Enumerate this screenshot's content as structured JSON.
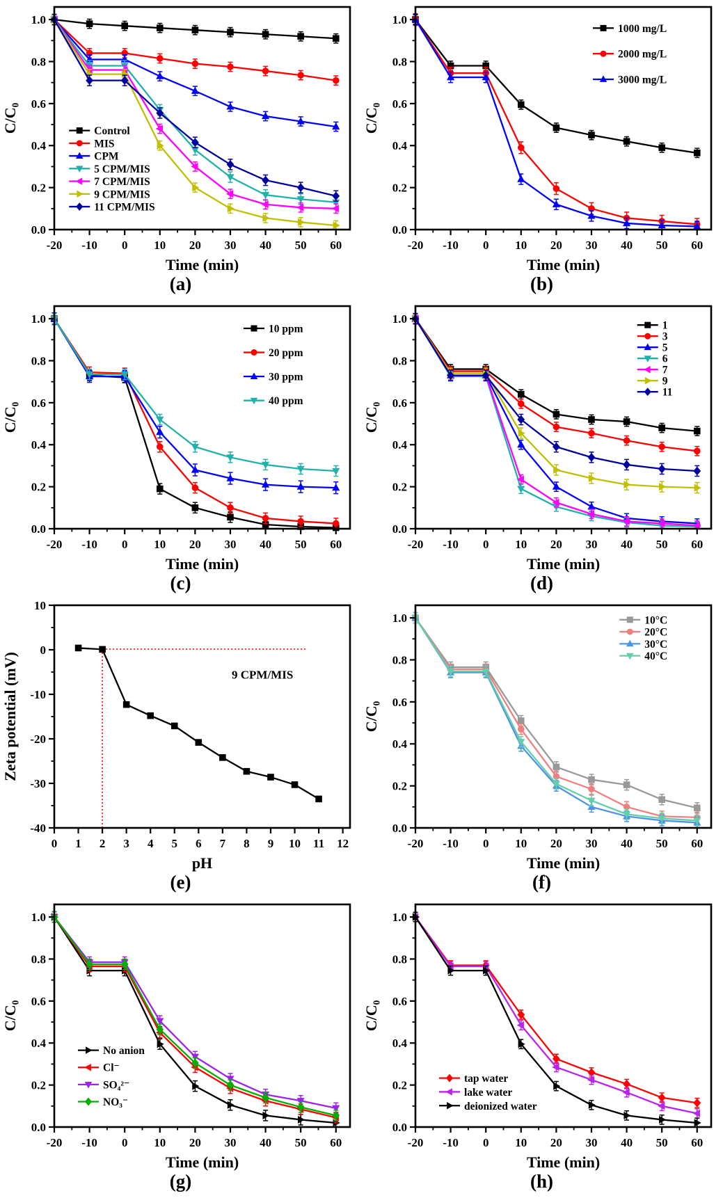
{
  "chart_data": [
    {
      "id": "a",
      "caption": "(a)",
      "type": "line",
      "xlabel": "Time (min)",
      "ylabel": "C/C₀",
      "xlim": [
        -20,
        64
      ],
      "ylim": [
        0,
        1.06
      ],
      "xticks": [
        -20,
        -10,
        0,
        10,
        20,
        30,
        40,
        50,
        60
      ],
      "xticklabels": [
        "-20",
        "-10",
        "0",
        "10",
        "20",
        "30",
        "40",
        "50",
        "60"
      ],
      "yticks": [
        0.0,
        0.2,
        0.4,
        0.6,
        0.8,
        1.0
      ],
      "yticklabels": [
        "0.0",
        "0.2",
        "0.4",
        "0.6",
        "0.8",
        "1.0"
      ],
      "minor_x": true,
      "minor_y": true,
      "grid": false,
      "x": [
        -20,
        -10,
        0,
        10,
        20,
        30,
        40,
        50,
        60
      ],
      "legend": {
        "x": 0.05,
        "y": 0.555,
        "dy": 0.057
      },
      "series": [
        {
          "name": "Control",
          "color": "#000000",
          "marker": "square",
          "yerr": 0.022,
          "values": [
            1.0,
            0.98,
            0.97,
            0.96,
            0.95,
            0.94,
            0.93,
            0.92,
            0.91
          ]
        },
        {
          "name": "MIS",
          "color": "#FF0000",
          "marker": "circle",
          "yerr": 0.022,
          "values": [
            1.0,
            0.84,
            0.84,
            0.815,
            0.79,
            0.775,
            0.755,
            0.735,
            0.71
          ]
        },
        {
          "name": "CPM",
          "color": "#0000FF",
          "marker": "triangle-up",
          "yerr": 0.022,
          "values": [
            1.0,
            0.81,
            0.81,
            0.73,
            0.66,
            0.585,
            0.54,
            0.515,
            0.49
          ]
        },
        {
          "name": "5 CPM/MIS",
          "color": "#20B2AA",
          "marker": "triangle-down",
          "yerr": 0.025,
          "values": [
            1.0,
            0.78,
            0.78,
            0.57,
            0.38,
            0.25,
            0.165,
            0.145,
            0.13
          ]
        },
        {
          "name": "7 CPM/MIS",
          "color": "#FF00FF",
          "marker": "triangle-left",
          "yerr": 0.022,
          "values": [
            1.0,
            0.76,
            0.76,
            0.48,
            0.3,
            0.17,
            0.12,
            0.105,
            0.1
          ]
        },
        {
          "name": "9 CPM/MIS",
          "color": "#C0C000",
          "marker": "triangle-right",
          "yerr": 0.022,
          "values": [
            1.0,
            0.74,
            0.74,
            0.4,
            0.2,
            0.1,
            0.055,
            0.035,
            0.02
          ]
        },
        {
          "name": "11 CPM/MIS",
          "color": "#0000A0",
          "marker": "diamond",
          "yerr": 0.025,
          "values": [
            1.0,
            0.71,
            0.71,
            0.555,
            0.415,
            0.31,
            0.235,
            0.2,
            0.16
          ]
        }
      ]
    },
    {
      "id": "b",
      "caption": "(b)",
      "type": "line",
      "xlabel": "Time (min)",
      "ylabel": "C/C₀",
      "xlim": [
        -20,
        64
      ],
      "ylim": [
        0,
        1.06
      ],
      "xticks": [
        -20,
        -10,
        0,
        10,
        20,
        30,
        40,
        50,
        60
      ],
      "xticklabels": [
        "-20",
        "-10",
        "0",
        "10",
        "20",
        "30",
        "40",
        "50",
        "60"
      ],
      "yticks": [
        0.0,
        0.2,
        0.4,
        0.6,
        0.8,
        1.0
      ],
      "yticklabels": [
        "0.0",
        "0.2",
        "0.4",
        "0.6",
        "0.8",
        "1.0"
      ],
      "minor_x": true,
      "minor_y": true,
      "grid": false,
      "x": [
        -20,
        -10,
        0,
        10,
        20,
        30,
        40,
        50,
        60
      ],
      "legend": {
        "x": 0.6,
        "y": 0.095,
        "dy": 0.115
      },
      "series": [
        {
          "name": "1000 mg/L",
          "color": "#000000",
          "marker": "square",
          "yerr": 0.022,
          "values": [
            1.0,
            0.78,
            0.78,
            0.595,
            0.485,
            0.45,
            0.42,
            0.39,
            0.365
          ]
        },
        {
          "name": "2000 mg/L",
          "color": "#FF0000",
          "marker": "circle",
          "yerr": 0.028,
          "values": [
            1.0,
            0.745,
            0.745,
            0.39,
            0.195,
            0.1,
            0.055,
            0.04,
            0.025
          ]
        },
        {
          "name": "3000 mg/L",
          "color": "#0000FF",
          "marker": "triangle-up",
          "yerr": 0.025,
          "values": [
            1.0,
            0.725,
            0.725,
            0.24,
            0.12,
            0.065,
            0.03,
            0.02,
            0.015
          ]
        }
      ]
    },
    {
      "id": "c",
      "caption": "(c)",
      "type": "line",
      "xlabel": "Time (min)",
      "ylabel": "C/C₀",
      "xlim": [
        -20,
        64
      ],
      "ylim": [
        0,
        1.06
      ],
      "xticks": [
        -20,
        -10,
        0,
        10,
        20,
        30,
        40,
        50,
        60
      ],
      "xticklabels": [
        "-20",
        "-10",
        "0",
        "10",
        "20",
        "30",
        "40",
        "50",
        "60"
      ],
      "yticks": [
        0.0,
        0.2,
        0.4,
        0.6,
        0.8,
        1.0
      ],
      "yticklabels": [
        "0.0",
        "0.2",
        "0.4",
        "0.6",
        "0.8",
        "1.0"
      ],
      "minor_x": true,
      "minor_y": true,
      "grid": false,
      "x": [
        -20,
        -10,
        0,
        10,
        20,
        30,
        40,
        50,
        60
      ],
      "legend": {
        "x": 0.64,
        "y": 0.1,
        "dy": 0.108
      },
      "series": [
        {
          "name": "10 ppm",
          "color": "#000000",
          "marker": "square",
          "yerr": 0.025,
          "values": [
            1.0,
            0.73,
            0.72,
            0.19,
            0.1,
            0.055,
            0.02,
            0.01,
            0.005
          ]
        },
        {
          "name": "20 ppm",
          "color": "#FF0000",
          "marker": "circle",
          "yerr": 0.025,
          "values": [
            1.0,
            0.745,
            0.74,
            0.39,
            0.195,
            0.1,
            0.05,
            0.035,
            0.025
          ]
        },
        {
          "name": "30 ppm",
          "color": "#0000FF",
          "marker": "triangle-up",
          "yerr": 0.028,
          "values": [
            1.0,
            0.725,
            0.725,
            0.46,
            0.28,
            0.24,
            0.21,
            0.2,
            0.195
          ]
        },
        {
          "name": "40 ppm",
          "color": "#20B2AA",
          "marker": "triangle-down",
          "yerr": 0.025,
          "values": [
            1.0,
            0.735,
            0.735,
            0.52,
            0.39,
            0.34,
            0.305,
            0.285,
            0.275
          ]
        }
      ]
    },
    {
      "id": "d",
      "caption": "(d)",
      "type": "line",
      "xlabel": "Time (min)",
      "ylabel": "C/C₀",
      "xlim": [
        -20,
        64
      ],
      "ylim": [
        0,
        1.06
      ],
      "xticks": [
        -20,
        -10,
        0,
        10,
        20,
        30,
        40,
        50,
        60
      ],
      "xticklabels": [
        "-20",
        "-10",
        "0",
        "10",
        "20",
        "30",
        "40",
        "50",
        "60"
      ],
      "yticks": [
        0.0,
        0.2,
        0.4,
        0.6,
        0.8,
        1.0
      ],
      "yticklabels": [
        "0.0",
        "0.2",
        "0.4",
        "0.6",
        "0.8",
        "1.0"
      ],
      "minor_x": true,
      "minor_y": true,
      "grid": false,
      "x": [
        -20,
        -10,
        0,
        10,
        20,
        30,
        40,
        50,
        60
      ],
      "legend": {
        "x": 0.75,
        "y": 0.085,
        "dy": 0.05
      },
      "series": [
        {
          "name": "1",
          "color": "#000000",
          "marker": "square",
          "yerr": 0.022,
          "values": [
            1.0,
            0.76,
            0.76,
            0.64,
            0.545,
            0.52,
            0.51,
            0.48,
            0.465
          ]
        },
        {
          "name": "3",
          "color": "#FF0000",
          "marker": "circle",
          "yerr": 0.022,
          "values": [
            1.0,
            0.75,
            0.75,
            0.595,
            0.485,
            0.455,
            0.42,
            0.39,
            0.37
          ]
        },
        {
          "name": "5",
          "color": "#0000FF",
          "marker": "triangle-up",
          "yerr": 0.022,
          "values": [
            1.0,
            0.73,
            0.73,
            0.4,
            0.2,
            0.105,
            0.05,
            0.035,
            0.025
          ]
        },
        {
          "name": "6",
          "color": "#20B2AA",
          "marker": "triangle-down",
          "yerr": 0.022,
          "values": [
            1.0,
            0.725,
            0.725,
            0.19,
            0.105,
            0.06,
            0.03,
            0.015,
            0.01
          ]
        },
        {
          "name": "7",
          "color": "#FF00FF",
          "marker": "triangle-left",
          "yerr": 0.022,
          "values": [
            1.0,
            0.73,
            0.73,
            0.235,
            0.125,
            0.07,
            0.035,
            0.025,
            0.015
          ]
        },
        {
          "name": "9",
          "color": "#C0C000",
          "marker": "triangle-right",
          "yerr": 0.025,
          "values": [
            1.0,
            0.74,
            0.74,
            0.455,
            0.28,
            0.24,
            0.21,
            0.2,
            0.195
          ]
        },
        {
          "name": "11",
          "color": "#0000A0",
          "marker": "diamond",
          "yerr": 0.025,
          "values": [
            1.0,
            0.73,
            0.73,
            0.52,
            0.39,
            0.34,
            0.305,
            0.285,
            0.275
          ]
        }
      ]
    },
    {
      "id": "e",
      "caption": "(e)",
      "type": "line",
      "xlabel": "pH",
      "ylabel": "Zeta potential (mV)",
      "xlim": [
        0,
        12.3
      ],
      "ylim": [
        -40,
        10
      ],
      "xticks": [
        0,
        1,
        2,
        3,
        4,
        5,
        6,
        7,
        8,
        9,
        10,
        11,
        12
      ],
      "xticklabels": [
        "0",
        "1",
        "2",
        "3",
        "4",
        "5",
        "6",
        "7",
        "8",
        "9",
        "10",
        "11",
        "12"
      ],
      "yticks": [
        10,
        0,
        -10,
        -20,
        -30,
        -40
      ],
      "yticklabels": [
        "10",
        "0",
        "-10",
        "-20",
        "-30",
        "-40"
      ],
      "minor_x": false,
      "minor_y": true,
      "grid": false,
      "x": [
        1,
        2,
        3,
        4,
        5,
        6,
        7,
        8,
        9,
        10,
        11
      ],
      "annotation": {
        "text": "9 CPM/MIS",
        "x": 0.6,
        "y": 0.33
      },
      "reference_lines": {
        "color": "#FF0000",
        "h": {
          "y": 0.15,
          "x1": 2,
          "x2": 10.5
        },
        "v": {
          "x": 2,
          "y1": 0.15,
          "y2": -40
        }
      },
      "series": [
        {
          "name": "9 CPM/MIS",
          "color": "#000000",
          "marker": "square",
          "yerr": 0,
          "values": [
            0.4,
            0.1,
            -12.3,
            -14.8,
            -17.1,
            -20.8,
            -24.2,
            -27.3,
            -28.6,
            -30.3,
            -33.5
          ]
        }
      ]
    },
    {
      "id": "f",
      "caption": "(f)",
      "type": "line",
      "xlabel": "Time (min)",
      "ylabel": "C/C₀",
      "xlim": [
        -20,
        64
      ],
      "ylim": [
        0,
        1.06
      ],
      "xticks": [
        -20,
        -10,
        0,
        10,
        20,
        30,
        40,
        50,
        60
      ],
      "xticklabels": [
        "-20",
        "-10",
        "0",
        "10",
        "20",
        "30",
        "40",
        "50",
        "60"
      ],
      "yticks": [
        0.0,
        0.2,
        0.4,
        0.6,
        0.8,
        1.0
      ],
      "yticklabels": [
        "0.0",
        "0.2",
        "0.4",
        "0.6",
        "0.8",
        "1.0"
      ],
      "minor_x": true,
      "minor_y": true,
      "grid": false,
      "x": [
        -20,
        -10,
        0,
        10,
        20,
        30,
        40,
        50,
        60
      ],
      "legend": {
        "x": 0.69,
        "y": 0.065,
        "dy": 0.054
      },
      "series": [
        {
          "name": "10°C",
          "color": "#999999",
          "marker": "square",
          "yerr": 0.025,
          "values": [
            1.0,
            0.765,
            0.765,
            0.51,
            0.29,
            0.23,
            0.205,
            0.135,
            0.095
          ]
        },
        {
          "name": "20°C",
          "color": "#F08080",
          "marker": "circle",
          "yerr": 0.025,
          "values": [
            1.0,
            0.755,
            0.755,
            0.47,
            0.245,
            0.185,
            0.1,
            0.055,
            0.05
          ]
        },
        {
          "name": "30°C",
          "color": "#4D94E6",
          "marker": "triangle-up",
          "yerr": 0.025,
          "values": [
            1.0,
            0.74,
            0.74,
            0.39,
            0.2,
            0.1,
            0.055,
            0.035,
            0.025
          ]
        },
        {
          "name": "40°C",
          "color": "#66CDAA",
          "marker": "triangle-down",
          "yerr": 0.025,
          "values": [
            1.0,
            0.745,
            0.745,
            0.41,
            0.21,
            0.13,
            0.065,
            0.045,
            0.035
          ]
        }
      ]
    },
    {
      "id": "g",
      "caption": "(g)",
      "type": "line",
      "xlabel": "Time (min)",
      "ylabel": "C/C₀",
      "xlim": [
        -20,
        64
      ],
      "ylim": [
        0,
        1.06
      ],
      "xticks": [
        -20,
        -10,
        0,
        10,
        20,
        30,
        40,
        50,
        60
      ],
      "xticklabels": [
        "-20",
        "-10",
        "0",
        "10",
        "20",
        "30",
        "40",
        "50",
        "60"
      ],
      "yticks": [
        0.0,
        0.2,
        0.4,
        0.6,
        0.8,
        1.0
      ],
      "yticklabels": [
        "0.0",
        "0.2",
        "0.4",
        "0.6",
        "0.8",
        "1.0"
      ],
      "minor_x": true,
      "minor_y": true,
      "grid": false,
      "x": [
        -20,
        -10,
        0,
        10,
        20,
        30,
        40,
        50,
        60
      ],
      "legend": {
        "x": 0.08,
        "y": 0.655,
        "dy": 0.077
      },
      "series": [
        {
          "name": "No anion",
          "color": "#000000",
          "marker": "triangle-right",
          "yerr": 0.025,
          "values": [
            1.0,
            0.745,
            0.745,
            0.395,
            0.195,
            0.105,
            0.055,
            0.035,
            0.02
          ]
        },
        {
          "name": "Cl⁻",
          "color": "#FF0000",
          "marker": "triangle-left",
          "yerr": 0.025,
          "values": [
            1.0,
            0.765,
            0.765,
            0.45,
            0.285,
            0.185,
            0.125,
            0.085,
            0.045
          ]
        },
        {
          "name": "SO₄²⁻",
          "color": "#A020F0",
          "marker": "triangle-down",
          "yerr": 0.025,
          "values": [
            1.0,
            0.785,
            0.785,
            0.505,
            0.335,
            0.23,
            0.155,
            0.125,
            0.09
          ]
        },
        {
          "name": "NO₃⁻",
          "color": "#00B000",
          "marker": "diamond",
          "yerr": 0.025,
          "values": [
            1.0,
            0.775,
            0.775,
            0.465,
            0.305,
            0.2,
            0.14,
            0.095,
            0.055
          ]
        }
      ]
    },
    {
      "id": "h",
      "caption": "(h)",
      "type": "line",
      "xlabel": "Time (min)",
      "ylabel": "C/C₀",
      "xlim": [
        -20,
        64
      ],
      "ylim": [
        0,
        1.06
      ],
      "xticks": [
        -20,
        -10,
        0,
        10,
        20,
        30,
        40,
        50,
        60
      ],
      "xticklabels": [
        "-20",
        "-10",
        "0",
        "10",
        "20",
        "30",
        "40",
        "50",
        "60"
      ],
      "yticks": [
        0.0,
        0.2,
        0.4,
        0.6,
        0.8,
        1.0
      ],
      "yticklabels": [
        "0.0",
        "0.2",
        "0.4",
        "0.6",
        "0.8",
        "1.0"
      ],
      "minor_x": true,
      "minor_y": true,
      "grid": false,
      "x": [
        -20,
        -10,
        0,
        10,
        20,
        30,
        40,
        50,
        60
      ],
      "legend": {
        "x": 0.08,
        "y": 0.78,
        "dy": 0.062
      },
      "series": [
        {
          "name": "tap water",
          "color": "#FF0000",
          "marker": "diamond",
          "yerr": 0.022,
          "values": [
            1.0,
            0.77,
            0.77,
            0.535,
            0.325,
            0.26,
            0.205,
            0.14,
            0.115
          ]
        },
        {
          "name": "lake water",
          "color": "#BB22EE",
          "marker": "triangle-left",
          "yerr": 0.022,
          "values": [
            1.0,
            0.765,
            0.765,
            0.485,
            0.285,
            0.225,
            0.165,
            0.1,
            0.065
          ]
        },
        {
          "name": "deionized water",
          "color": "#000000",
          "marker": "triangle-right",
          "yerr": 0.022,
          "values": [
            1.0,
            0.745,
            0.745,
            0.395,
            0.195,
            0.105,
            0.055,
            0.035,
            0.02
          ]
        }
      ]
    }
  ]
}
